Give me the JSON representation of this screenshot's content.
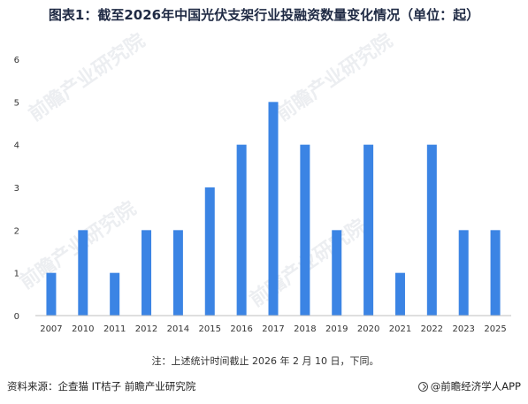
{
  "header": {
    "title": "图表1：截至2026年中国光伏支架行业投融资数量变化情况（单位：起）"
  },
  "chart_data": {
    "type": "bar",
    "categories": [
      "2007",
      "2010",
      "2011",
      "2012",
      "2014",
      "2015",
      "2016",
      "2017",
      "2018",
      "2019",
      "2020",
      "2021",
      "2022",
      "2023",
      "2025"
    ],
    "series": [
      {
        "values": [
          1,
          2,
          1,
          2,
          2,
          3,
          4,
          5,
          4,
          2,
          4,
          1,
          4,
          2,
          2
        ]
      }
    ],
    "ylim": [
      0,
      6
    ],
    "yticks": [
      "0",
      "1",
      "2",
      "3",
      "4",
      "5",
      "6"
    ],
    "grid": false,
    "bar_color": "#3b84e4",
    "note": "注：上述统计时间截止 2026 年 2 月 10 日，下同。"
  },
  "footer": {
    "source": "资料来源：企查猫 IT桔子 前瞻产业研究院",
    "brand": "@前瞻经济学人APP"
  },
  "watermark": {
    "text": "前瞻产业研究院"
  }
}
